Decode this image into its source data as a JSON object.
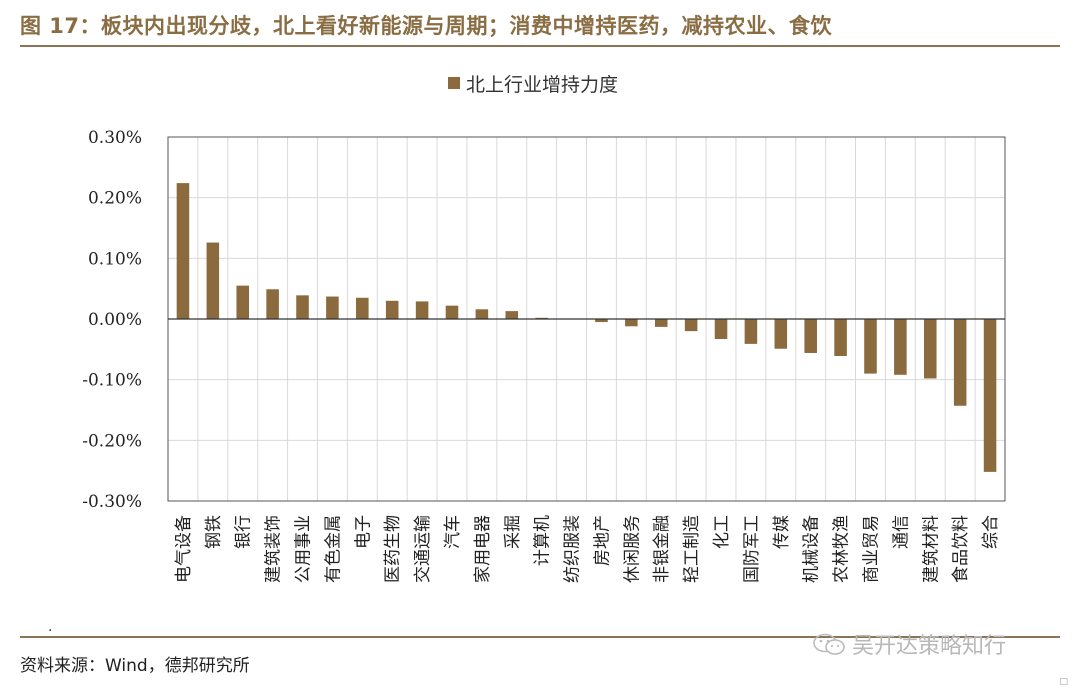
{
  "header": {
    "title": "图 17：板块内出现分歧，北上看好新能源与周期；消费中增持医药，减持农业、食饮"
  },
  "footer": {
    "source": "资料来源：Wind，德邦研究所",
    "dot": ".",
    "watermark": "吴开达策略知行",
    "corner_mark": "□"
  },
  "colors": {
    "bar": "#8b6a3e",
    "title": "#8a6d43",
    "rule": "#8b7355",
    "grid": "#d9d9d9"
  },
  "chart_data": {
    "type": "bar",
    "title": "",
    "xlabel": "",
    "ylabel": "",
    "ylim": [
      -0.003,
      0.003
    ],
    "y_tick_values": [
      0.003,
      0.002,
      0.001,
      0.0,
      -0.001,
      -0.002,
      -0.003
    ],
    "y_tick_labels": [
      "0.30%",
      "0.20%",
      "0.10%",
      "0.00%",
      "-0.10%",
      "-0.20%",
      "-0.30%"
    ],
    "grid": true,
    "legend_position": "top-center",
    "series": [
      {
        "name": "北上行业增持力度",
        "values": [
          0.00224,
          0.00126,
          0.00055,
          0.00049,
          0.00039,
          0.00037,
          0.00035,
          0.0003,
          0.00029,
          0.00022,
          0.00016,
          0.00013,
          2e-05,
          0.0,
          -5e-05,
          -0.00012,
          -0.00013,
          -0.0002,
          -0.00033,
          -0.00041,
          -0.00049,
          -0.00056,
          -0.00061,
          -0.0009,
          -0.00092,
          -0.00098,
          -0.00143,
          -0.00252
        ]
      }
    ],
    "categories": [
      "电气设备",
      "钢铁",
      "银行",
      "建筑装饰",
      "公用事业",
      "有色金属",
      "电子",
      "医药生物",
      "交通运输",
      "汽车",
      "家用电器",
      "采掘",
      "计算机",
      "纺织服装",
      "房地产",
      "休闲服务",
      "非银金融",
      "轻工制造",
      "化工",
      "国防军工",
      "传媒",
      "机械设备",
      "农林牧渔",
      "商业贸易",
      "通信",
      "建筑材料",
      "食品饮料",
      "综合"
    ]
  }
}
